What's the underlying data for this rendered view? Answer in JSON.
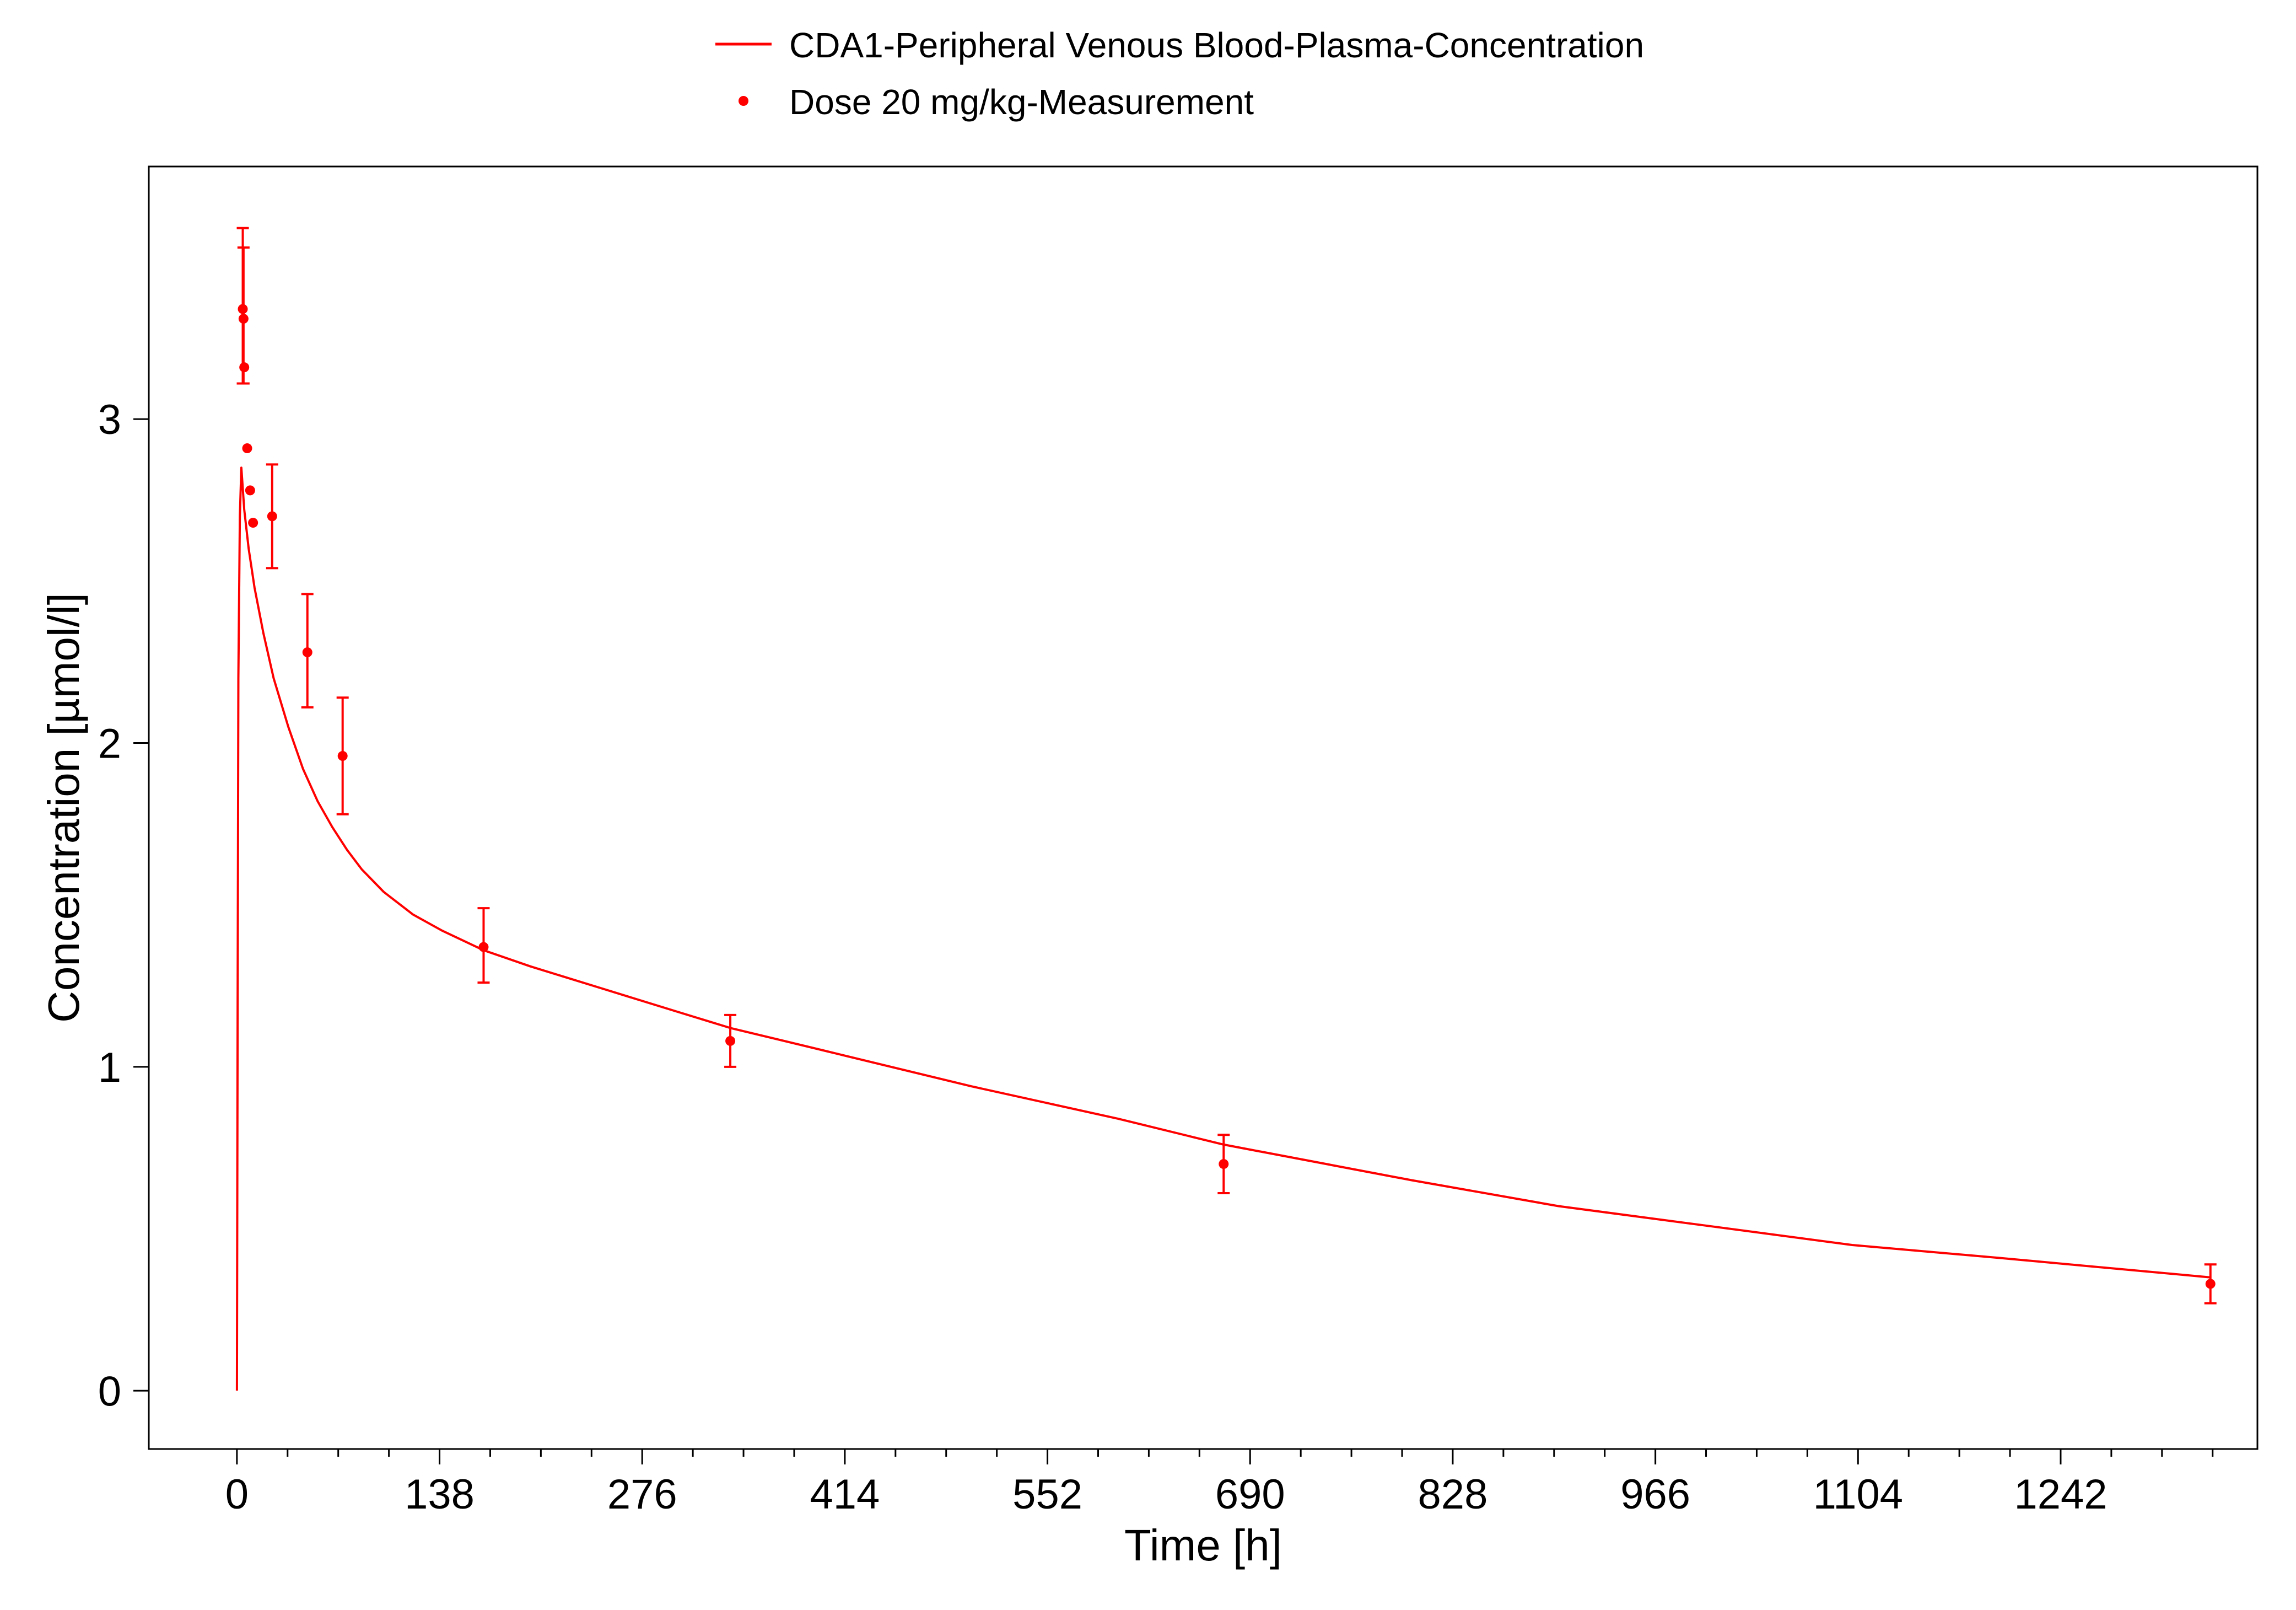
{
  "colors": {
    "series": "#FF0000",
    "axis": "#000000",
    "background": "#FFFFFF"
  },
  "chart_data": {
    "type": "line",
    "title": "",
    "xlabel": "Time [h]",
    "ylabel": "Concentration [µmol/l]",
    "xlim": [
      -60,
      1376
    ],
    "ylim": [
      -0.18,
      3.78
    ],
    "grid": false,
    "legend_position": "top-center",
    "xticks": [
      0,
      138,
      276,
      414,
      552,
      690,
      828,
      966,
      1104,
      1242
    ],
    "xtick_labels": [
      "0",
      "138",
      "276",
      "414",
      "552",
      "690",
      "828",
      "966",
      "1104",
      "1242"
    ],
    "yticks": [
      0,
      1,
      2,
      3
    ],
    "ytick_labels": [
      "0",
      "1",
      "2",
      "3"
    ],
    "legend": [
      {
        "label": "CDA1-Peripheral Venous Blood-Plasma-Concentration",
        "marker": "line"
      },
      {
        "label": "Dose 20 mg/kg-Measurement",
        "marker": "point"
      }
    ],
    "series": [
      {
        "name": "CDA1-Peripheral Venous Blood-Plasma-Concentration",
        "kind": "line",
        "x": [
          0,
          0.5,
          1,
          2,
          3,
          5,
          8,
          12,
          18,
          25,
          35,
          45,
          55,
          65,
          75,
          85,
          100,
          120,
          140,
          168,
          200,
          250,
          300,
          336,
          400,
          500,
          600,
          672,
          800,
          900,
          1000,
          1100,
          1200,
          1344
        ],
        "y": [
          0,
          1.2,
          2.2,
          2.7,
          2.85,
          2.72,
          2.6,
          2.48,
          2.34,
          2.2,
          2.05,
          1.92,
          1.82,
          1.74,
          1.67,
          1.61,
          1.54,
          1.47,
          1.42,
          1.36,
          1.31,
          1.24,
          1.17,
          1.12,
          1.05,
          0.94,
          0.84,
          0.76,
          0.65,
          0.57,
          0.51,
          0.45,
          0.41,
          0.35
        ]
      },
      {
        "name": "Dose 20 mg/kg-Measurement",
        "kind": "scatter",
        "x": [
          4,
          4.5,
          5,
          7,
          9,
          11,
          24,
          48,
          72,
          168,
          336,
          672,
          1344
        ],
        "y": [
          3.34,
          3.31,
          3.16,
          2.91,
          2.78,
          2.68,
          2.7,
          2.28,
          1.96,
          1.37,
          1.08,
          0.7,
          0.33
        ],
        "err_low": [
          3.11,
          3.11,
          null,
          null,
          null,
          null,
          2.54,
          2.11,
          1.78,
          1.26,
          1.0,
          0.61,
          0.27
        ],
        "err_high": [
          3.59,
          3.53,
          null,
          null,
          null,
          null,
          2.86,
          2.46,
          2.14,
          1.49,
          1.16,
          0.79,
          0.39
        ]
      }
    ]
  }
}
